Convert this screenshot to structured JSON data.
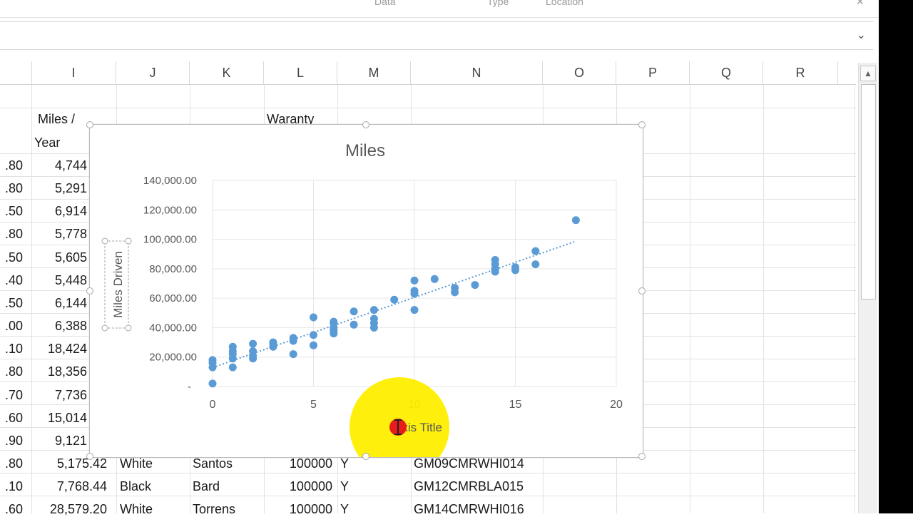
{
  "ribbon": {
    "labels": [
      "Data",
      "Type",
      "Location"
    ]
  },
  "columns": [
    "I",
    "J",
    "K",
    "L",
    "M",
    "N",
    "O",
    "P",
    "Q",
    "R"
  ],
  "headers": {
    "miles_year_line1": "Miles /",
    "miles_year_line2": "Year",
    "warranty_partial": "Waranty"
  },
  "left_partial_values": [
    ".80",
    ".80",
    ".50",
    ".80",
    ".50",
    ".40",
    ".50",
    ".00",
    ".10",
    ".80",
    ".70",
    ".60",
    ".90",
    ".80",
    ".10",
    ".60"
  ],
  "miles_per_year": [
    "4,744",
    "5,291",
    "6,914",
    "5,778",
    "5,605",
    "5,448",
    "6,144",
    "6,388",
    "18,424",
    "18,356",
    "7,736",
    "15,014",
    "9,121",
    "5,175.42",
    "7,768.44",
    "28,579.20"
  ],
  "bottom_rows": [
    {
      "color": "White",
      "name": "Santos",
      "warranty": "100000",
      "flag": "Y",
      "code": "GM09CMRWHI014"
    },
    {
      "color": "Black",
      "name": "Bard",
      "warranty": "100000",
      "flag": "Y",
      "code": "GM12CMRBLA015"
    },
    {
      "color": "White",
      "name": "Torrens",
      "warranty": "100000",
      "flag": "Y",
      "code": "GM14CMRWHI016"
    }
  ],
  "colors": {
    "series": "#5b9bd5",
    "highlight": "#ffee00",
    "cursor": "#e81c1c"
  },
  "chart_data": {
    "type": "scatter",
    "title": "Miles",
    "ylabel": "Miles Driven",
    "xlabel": "Axis Title",
    "xlim": [
      0,
      20
    ],
    "ylim": [
      0,
      140000
    ],
    "x_ticks": [
      "0",
      "5",
      "10",
      "15",
      "20"
    ],
    "y_ticks": [
      "-",
      "20,000.00",
      "40,000.00",
      "60,000.00",
      "80,000.00",
      "100,000.00",
      "120,000.00",
      "140,000.00"
    ],
    "trendline": "linear",
    "series": [
      {
        "points": [
          [
            0,
            2000
          ],
          [
            0,
            13000
          ],
          [
            0,
            16000
          ],
          [
            0,
            18000
          ],
          [
            1,
            13000
          ],
          [
            1,
            19000
          ],
          [
            1,
            22000
          ],
          [
            1,
            24000
          ],
          [
            1,
            27000
          ],
          [
            2,
            19000
          ],
          [
            2,
            21000
          ],
          [
            2,
            24000
          ],
          [
            2,
            29000
          ],
          [
            3,
            27000
          ],
          [
            3,
            29000
          ],
          [
            3,
            30000
          ],
          [
            4,
            22000
          ],
          [
            4,
            31000
          ],
          [
            4,
            33000
          ],
          [
            5,
            28000
          ],
          [
            5,
            35000
          ],
          [
            5,
            47000
          ],
          [
            6,
            36000
          ],
          [
            6,
            38000
          ],
          [
            6,
            40000
          ],
          [
            6,
            43000
          ],
          [
            6,
            44000
          ],
          [
            7,
            42000
          ],
          [
            7,
            51000
          ],
          [
            8,
            40000
          ],
          [
            8,
            43000
          ],
          [
            8,
            46000
          ],
          [
            8,
            52000
          ],
          [
            9,
            59000
          ],
          [
            10,
            52000
          ],
          [
            10,
            63000
          ],
          [
            10,
            65000
          ],
          [
            10,
            72000
          ],
          [
            11,
            73000
          ],
          [
            12,
            64000
          ],
          [
            12,
            67000
          ],
          [
            13,
            69000
          ],
          [
            14,
            78000
          ],
          [
            14,
            80000
          ],
          [
            14,
            83000
          ],
          [
            14,
            86000
          ],
          [
            15,
            79000
          ],
          [
            15,
            81000
          ],
          [
            16,
            83000
          ],
          [
            16,
            92000
          ],
          [
            18,
            113000
          ]
        ]
      }
    ]
  }
}
